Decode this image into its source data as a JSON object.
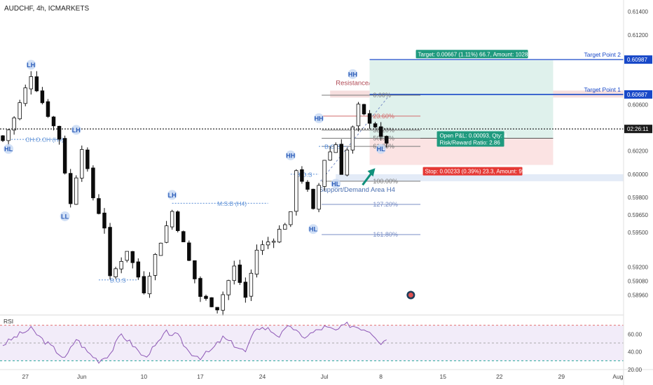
{
  "header": {
    "symbol_line": "AUDCHF, 4h, ICMARKETS"
  },
  "colors": {
    "bull": "#0b0b0b",
    "bear": "#0b0b0b",
    "label_blue": "#5b8fd6",
    "label_bg": "#c9daf5",
    "target_blue": "#1848c8",
    "profit_fill": "#dff1ec",
    "loss_fill": "#fbe3e3",
    "stop_red": "#e53935",
    "target_green": "#1f9a7e",
    "fib_red": "#d26b6b",
    "fib_gray": "#7a7a7a",
    "fib_blue": "#7a8fc6",
    "resistance_fill": "#f6dede",
    "support_fill": "#e3ebf7",
    "rsi_line": "#8e58b6",
    "rsi_fill": "#f2ecf9",
    "rsi_band_red": "#e57373",
    "rsi_band_green": "#26a69a",
    "arrow_teal": "#10907c"
  },
  "chart_data": {
    "type": "candlestick",
    "symbol": "AUDCHF",
    "timeframe": "4h",
    "source": "ICMARKETS",
    "price_axis": {
      "range": [
        0.588,
        0.615
      ],
      "ticks": [
        "0.61400",
        "0.61200",
        "0.60987",
        "0.60687",
        "0.60600",
        "0.60400",
        "0.60200",
        "0.60000",
        "0.59800",
        "0.59650",
        "0.59500",
        "0.59200",
        "0.59080",
        "0.58960"
      ],
      "last_price_time": "02:26:11"
    },
    "time_axis": {
      "ticks": [
        {
          "label": "27",
          "i": 4
        },
        {
          "label": "Jun",
          "i": 14
        },
        {
          "label": "10",
          "i": 25
        },
        {
          "label": "17",
          "i": 35
        },
        {
          "label": "24",
          "i": 46
        },
        {
          "label": "Jul",
          "i": 57
        },
        {
          "label": "8",
          "i": 67
        },
        {
          "label": "15",
          "i": 78
        },
        {
          "label": "22",
          "i": 88
        },
        {
          "label": "29",
          "i": 99
        },
        {
          "label": "Aug",
          "i": 109
        }
      ]
    },
    "anchors": [
      {
        "i": 0,
        "p": 0.6029
      },
      {
        "i": 2,
        "p": 0.6048
      },
      {
        "i": 5,
        "p": 0.6086
      },
      {
        "i": 7,
        "p": 0.6062
      },
      {
        "i": 10,
        "p": 0.6031
      },
      {
        "i": 12,
        "p": 0.5974
      },
      {
        "i": 14,
        "p": 0.6024
      },
      {
        "i": 16,
        "p": 0.598
      },
      {
        "i": 18,
        "p": 0.5955
      },
      {
        "i": 19,
        "p": 0.591
      },
      {
        "i": 22,
        "p": 0.5935
      },
      {
        "i": 25,
        "p": 0.59
      },
      {
        "i": 27,
        "p": 0.593
      },
      {
        "i": 30,
        "p": 0.5968
      },
      {
        "i": 32,
        "p": 0.594
      },
      {
        "i": 35,
        "p": 0.5895
      },
      {
        "i": 38,
        "p": 0.5885
      },
      {
        "i": 41,
        "p": 0.592
      },
      {
        "i": 43,
        "p": 0.5894
      },
      {
        "i": 45,
        "p": 0.5935
      },
      {
        "i": 48,
        "p": 0.5945
      },
      {
        "i": 51,
        "p": 0.5965
      },
      {
        "i": 52,
        "p": 0.6005
      },
      {
        "i": 54,
        "p": 0.5985
      },
      {
        "i": 55,
        "p": 0.5968
      },
      {
        "i": 57,
        "p": 0.6013
      },
      {
        "i": 59,
        "p": 0.6026
      },
      {
        "i": 60,
        "p": 0.6002
      },
      {
        "i": 63,
        "p": 0.6058
      },
      {
        "i": 64,
        "p": 0.605
      },
      {
        "i": 66,
        "p": 0.6042
      },
      {
        "i": 67,
        "p": 0.603
      },
      {
        "i": 68,
        "p": 0.6028
      }
    ],
    "last_candle_index": 68,
    "pattern_labels": [
      {
        "text": "HL",
        "i": 1,
        "p": 0.6026,
        "pos": "below"
      },
      {
        "text": "LH",
        "i": 5,
        "p": 0.609,
        "pos": "above"
      },
      {
        "text": "LH",
        "i": 13,
        "p": 0.6034,
        "pos": "above"
      },
      {
        "text": "LL",
        "i": 11,
        "p": 0.5968,
        "pos": "below"
      },
      {
        "text": "LH",
        "i": 30,
        "p": 0.5978,
        "pos": "above"
      },
      {
        "text": "HH",
        "i": 51,
        "p": 0.6012,
        "pos": "above"
      },
      {
        "text": "HL",
        "i": 55,
        "p": 0.5957,
        "pos": "below"
      },
      {
        "text": "HH",
        "i": 56,
        "p": 0.6044,
        "pos": "above"
      },
      {
        "text": "HL",
        "i": 59,
        "p": 0.5996,
        "pos": "below"
      },
      {
        "text": "HH",
        "i": 62,
        "p": 0.6082,
        "pos": "above"
      },
      {
        "text": "HL",
        "i": 67,
        "p": 0.6026,
        "pos": "below"
      }
    ],
    "structure_lines": [
      {
        "text": "CH.O.CH (H4)",
        "i1": 1,
        "i2": 11,
        "p": 0.603,
        "text_i": 4
      },
      {
        "text": "M.S.B (H4)",
        "i1": 30,
        "i2": 47,
        "p": 0.5975,
        "text_i": 38
      },
      {
        "text": "B.O.S",
        "i1": 17,
        "i2": 24,
        "p": 0.5909,
        "text_i": 19
      },
      {
        "text": "B.O.S",
        "i1": 51,
        "i2": 56,
        "p": 0.6,
        "text_i": 52
      },
      {
        "text": "B.O.S",
        "i1": 56,
        "i2": 61,
        "p": 0.6024,
        "text_i": 57
      }
    ],
    "zones": [
      {
        "text": "Resistance/Supply Area H4",
        "p_top": 0.6072,
        "p_bottom": 0.6066,
        "i_start": 58,
        "text_i": 59
      },
      {
        "text": "Support/Demand Area H4",
        "p_top": 0.6,
        "p_bottom": 0.5994,
        "i_start": 59,
        "text_i": 56
      }
    ],
    "fibonacci": [
      {
        "label": "0.00%",
        "p": 0.6068,
        "color": "fib_gray"
      },
      {
        "label": "23.60%",
        "p": 0.605,
        "color": "fib_red"
      },
      {
        "label": "38.20%",
        "p": 0.6038,
        "color": "fib_gray"
      },
      {
        "label": "50.00%",
        "p": 0.6031,
        "color": "fib_gray"
      },
      {
        "label": "61.80%",
        "p": 0.6024,
        "color": "fib_gray"
      },
      {
        "label": "100.00%",
        "p": 0.5994,
        "color": "fib_gray"
      },
      {
        "label": "127.20%",
        "p": 0.5974,
        "color": "fib_blue"
      },
      {
        "label": "161.80%",
        "p": 0.5948,
        "color": "fib_blue"
      }
    ],
    "position": {
      "entry": 0.6031,
      "target_price": 0.6098,
      "stop_price": 0.6008,
      "target_label": "Target: 0.00667 (1.11%) 66.7, Amount: 1028.63",
      "stop_label": "Stop: 0.00233 (0.39%) 23.3, Amount: 990",
      "pnl_line1": "Open P&L: 0.00093, Qty: 4",
      "pnl_line2": "Risk/Reward Ratio: 2.86",
      "i_start": 65,
      "i_end": 100
    },
    "targets": [
      {
        "label": "Target Point 2",
        "p": 0.60987,
        "price_label": "0.60987"
      },
      {
        "label": "Target Point 1",
        "p": 0.60687,
        "price_label": "0.60687"
      }
    ],
    "current_price": 0.6039,
    "rsi": {
      "label": "RSI",
      "range": [
        20,
        80
      ],
      "ticks": [
        "60.00",
        "40.00",
        "20.00"
      ],
      "upper": 70,
      "middle": 50,
      "lower": 30,
      "anchors": [
        {
          "i": 0,
          "v": 48
        },
        {
          "i": 3,
          "v": 60
        },
        {
          "i": 5,
          "v": 66
        },
        {
          "i": 7,
          "v": 54
        },
        {
          "i": 9,
          "v": 44
        },
        {
          "i": 11,
          "v": 32
        },
        {
          "i": 13,
          "v": 55
        },
        {
          "i": 15,
          "v": 40
        },
        {
          "i": 17,
          "v": 30
        },
        {
          "i": 19,
          "v": 38
        },
        {
          "i": 21,
          "v": 60
        },
        {
          "i": 23,
          "v": 48
        },
        {
          "i": 25,
          "v": 34
        },
        {
          "i": 27,
          "v": 46
        },
        {
          "i": 29,
          "v": 62
        },
        {
          "i": 31,
          "v": 58
        },
        {
          "i": 33,
          "v": 40
        },
        {
          "i": 35,
          "v": 34
        },
        {
          "i": 37,
          "v": 42
        },
        {
          "i": 39,
          "v": 56
        },
        {
          "i": 41,
          "v": 48
        },
        {
          "i": 43,
          "v": 40
        },
        {
          "i": 45,
          "v": 68
        },
        {
          "i": 47,
          "v": 66
        },
        {
          "i": 49,
          "v": 58
        },
        {
          "i": 51,
          "v": 70
        },
        {
          "i": 53,
          "v": 56
        },
        {
          "i": 55,
          "v": 62
        },
        {
          "i": 57,
          "v": 68
        },
        {
          "i": 59,
          "v": 64
        },
        {
          "i": 61,
          "v": 71
        },
        {
          "i": 63,
          "v": 68
        },
        {
          "i": 65,
          "v": 64
        },
        {
          "i": 66,
          "v": 58
        },
        {
          "i": 67,
          "v": 50
        },
        {
          "i": 68,
          "v": 55
        }
      ]
    }
  }
}
